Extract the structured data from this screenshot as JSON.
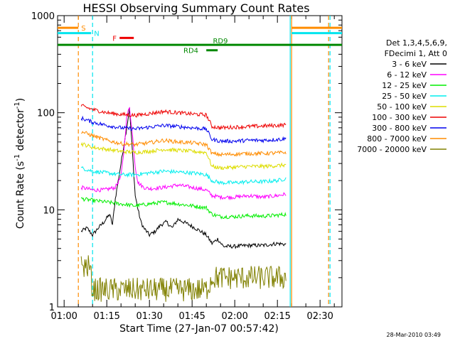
{
  "chart_data": {
    "type": "line",
    "title": "HESSI Observing Summary Count Rates",
    "xlabel": "Start Time (27-Jan-07 00:57:42)",
    "ylabel_main": "Count Rate (s",
    "ylabel_sup1": "-1",
    "ylabel_mid": " detector",
    "ylabel_sup2": "-1",
    "ylabel_end": ")",
    "y_scale": "log",
    "xlim": [
      "00:57:42",
      "02:37:42"
    ],
    "ylim": [
      1,
      1000
    ],
    "x_ticks": [
      "01:00",
      "01:15",
      "01:30",
      "01:45",
      "02:00",
      "02:15",
      "02:30"
    ],
    "y_ticks": [
      "1",
      "10",
      "100",
      "1000"
    ],
    "timestamp": "28-Mar-2010 03:49",
    "legend_placement": "right",
    "legend_header": [
      "Det 1,3,4,5,6,9,",
      "FDecimi 1, Att 0"
    ],
    "colors": {
      "eclipse": "#ff8c00",
      "saa": "#00e5ee",
      "flare": "#ee0000",
      "decimation": "#008800"
    },
    "markers": [
      {
        "label": "S",
        "color": "#ff8c00",
        "start": "00:57:42",
        "end": "01:05:00",
        "level": 750
      },
      {
        "label": "N",
        "color": "#00e5ee",
        "start": "00:57:42",
        "end": "01:09:30",
        "level": 660
      },
      {
        "label": "F",
        "color": "#ee0000",
        "start": "01:19:30",
        "end": "01:24:30",
        "level": 590
      },
      {
        "label": "RD9",
        "color": "#008800",
        "start": "00:57:42",
        "end": "02:37:42",
        "level": 500
      },
      {
        "label": "RD4",
        "color": "#008800",
        "start": "01:50:00",
        "end": "01:54:00",
        "level": 440
      }
    ],
    "marker_labels_right": [
      {
        "color": "#ff8c00",
        "start": "02:20:00",
        "end": "02:37:42",
        "level": 750
      },
      {
        "color": "#00e5ee",
        "start": "02:20:00",
        "end": "02:37:42",
        "level": 660
      }
    ],
    "vlines": [
      {
        "time": "01:05:00",
        "color": "#ff8c00",
        "style": "dashed"
      },
      {
        "time": "01:10:00",
        "color": "#00e5ee",
        "style": "dashed"
      },
      {
        "time": "02:19:30",
        "color": "#00e5ee",
        "style": "solid"
      },
      {
        "time": "02:20:00",
        "color": "#ff8c00",
        "style": "solid"
      },
      {
        "time": "02:33:00",
        "color": "#ff8c00",
        "style": "dashed"
      },
      {
        "time": "02:33:30",
        "color": "#00e5ee",
        "style": "dashed"
      }
    ],
    "data_start": "01:06:00",
    "data_end": "02:18:00",
    "series": [
      {
        "name": "3 - 6 keV",
        "color": "#000000",
        "points": [
          [
            "01:06",
            6
          ],
          [
            "01:08",
            6.5
          ],
          [
            "01:10",
            5.5
          ],
          [
            "01:12",
            6.5
          ],
          [
            "01:14",
            7.5
          ],
          [
            "01:16",
            9
          ],
          [
            "01:17",
            7
          ],
          [
            "01:18",
            13
          ],
          [
            "01:20",
            30
          ],
          [
            "01:22",
            70
          ],
          [
            "01:23",
            110
          ],
          [
            "01:24",
            40
          ],
          [
            "01:25",
            14
          ],
          [
            "01:26",
            10
          ],
          [
            "01:27",
            7.5
          ],
          [
            "01:28",
            6.5
          ],
          [
            "01:30",
            5.5
          ],
          [
            "01:32",
            6
          ],
          [
            "01:34",
            7
          ],
          [
            "01:36",
            7.5
          ],
          [
            "01:38",
            6.5
          ],
          [
            "01:40",
            8
          ],
          [
            "01:42",
            7.5
          ],
          [
            "01:44",
            7
          ],
          [
            "01:46",
            6.5
          ],
          [
            "01:48",
            6
          ],
          [
            "01:50",
            5.5
          ],
          [
            "01:52",
            4.5
          ],
          [
            "01:54",
            5
          ],
          [
            "01:56",
            4.2
          ],
          [
            "02:00",
            4.2
          ],
          [
            "02:05",
            4.3
          ],
          [
            "02:10",
            4.3
          ],
          [
            "02:15",
            4.5
          ],
          [
            "02:18",
            4.4
          ]
        ]
      },
      {
        "name": "6 - 12 keV",
        "color": "#ff00ff",
        "points": [
          [
            "01:06",
            17
          ],
          [
            "01:10",
            16
          ],
          [
            "01:14",
            16
          ],
          [
            "01:18",
            17
          ],
          [
            "01:20",
            22
          ],
          [
            "01:21",
            40
          ],
          [
            "01:22",
            90
          ],
          [
            "01:23",
            115
          ],
          [
            "01:24",
            60
          ],
          [
            "01:25",
            28
          ],
          [
            "01:26",
            19
          ],
          [
            "01:28",
            17
          ],
          [
            "01:30",
            16.5
          ],
          [
            "01:35",
            17
          ],
          [
            "01:40",
            18
          ],
          [
            "01:45",
            17
          ],
          [
            "01:50",
            16
          ],
          [
            "01:52",
            14
          ],
          [
            "01:55",
            13.5
          ],
          [
            "02:00",
            13.5
          ],
          [
            "02:05",
            14
          ],
          [
            "02:10",
            13.5
          ],
          [
            "02:15",
            14
          ],
          [
            "02:18",
            14.5
          ]
        ]
      },
      {
        "name": "12 - 25 keV",
        "color": "#00ee00",
        "points": [
          [
            "01:06",
            13
          ],
          [
            "01:10",
            12.5
          ],
          [
            "01:15",
            12
          ],
          [
            "01:20",
            11.5
          ],
          [
            "01:25",
            11
          ],
          [
            "01:30",
            11.5
          ],
          [
            "01:35",
            12
          ],
          [
            "01:40",
            11.5
          ],
          [
            "01:45",
            11
          ],
          [
            "01:50",
            10.5
          ],
          [
            "01:52",
            9
          ],
          [
            "01:55",
            8.5
          ],
          [
            "02:00",
            8.5
          ],
          [
            "02:05",
            8.7
          ],
          [
            "02:10",
            8.6
          ],
          [
            "02:15",
            8.8
          ],
          [
            "02:18",
            9
          ]
        ]
      },
      {
        "name": "25 - 50 keV",
        "color": "#00eeee",
        "points": [
          [
            "01:06",
            27
          ],
          [
            "01:10",
            25
          ],
          [
            "01:15",
            24
          ],
          [
            "01:20",
            23
          ],
          [
            "01:25",
            23
          ],
          [
            "01:30",
            24
          ],
          [
            "01:35",
            25
          ],
          [
            "01:40",
            24.5
          ],
          [
            "01:45",
            24
          ],
          [
            "01:50",
            23
          ],
          [
            "01:52",
            20
          ],
          [
            "01:55",
            19
          ],
          [
            "02:00",
            19
          ],
          [
            "02:05",
            19.5
          ],
          [
            "02:10",
            19.5
          ],
          [
            "02:15",
            20
          ],
          [
            "02:18",
            21
          ]
        ]
      },
      {
        "name": "50 - 100 keV",
        "color": "#dddd00",
        "points": [
          [
            "01:06",
            48
          ],
          [
            "01:10",
            44
          ],
          [
            "01:15",
            42
          ],
          [
            "01:20",
            40
          ],
          [
            "01:25",
            39
          ],
          [
            "01:30",
            40
          ],
          [
            "01:35",
            42
          ],
          [
            "01:40",
            41
          ],
          [
            "01:45",
            40
          ],
          [
            "01:50",
            39
          ],
          [
            "01:52",
            28
          ],
          [
            "01:55",
            27
          ],
          [
            "02:00",
            27.5
          ],
          [
            "02:05",
            28
          ],
          [
            "02:10",
            28
          ],
          [
            "02:15",
            28.5
          ],
          [
            "02:18",
            29
          ]
        ]
      },
      {
        "name": "100 - 300 keV",
        "color": "#ee0000",
        "points": [
          [
            "01:06",
            118
          ],
          [
            "01:10",
            108
          ],
          [
            "01:15",
            100
          ],
          [
            "01:20",
            96
          ],
          [
            "01:25",
            94
          ],
          [
            "01:30",
            98
          ],
          [
            "01:35",
            103
          ],
          [
            "01:40",
            100
          ],
          [
            "01:45",
            97
          ],
          [
            "01:50",
            95
          ],
          [
            "01:52",
            72
          ],
          [
            "01:55",
            70
          ],
          [
            "02:00",
            71
          ],
          [
            "02:05",
            72
          ],
          [
            "02:10",
            73
          ],
          [
            "02:15",
            74
          ],
          [
            "02:18",
            75
          ]
        ]
      },
      {
        "name": "300 - 800 keV",
        "color": "#0000ee",
        "points": [
          [
            "01:06",
            88
          ],
          [
            "01:10",
            80
          ],
          [
            "01:15",
            74
          ],
          [
            "01:20",
            70
          ],
          [
            "01:25",
            68
          ],
          [
            "01:30",
            71
          ],
          [
            "01:35",
            74
          ],
          [
            "01:40",
            72
          ],
          [
            "01:45",
            70
          ],
          [
            "01:50",
            68
          ],
          [
            "01:52",
            53
          ],
          [
            "01:55",
            51
          ],
          [
            "02:00",
            51
          ],
          [
            "02:05",
            52
          ],
          [
            "02:10",
            52
          ],
          [
            "02:15",
            53
          ],
          [
            "02:18",
            54
          ]
        ]
      },
      {
        "name": "800 - 7000 keV",
        "color": "#ff8c00",
        "points": [
          [
            "01:06",
            64
          ],
          [
            "01:10",
            58
          ],
          [
            "01:15",
            52
          ],
          [
            "01:20",
            48
          ],
          [
            "01:25",
            47
          ],
          [
            "01:30",
            49
          ],
          [
            "01:35",
            52
          ],
          [
            "01:40",
            50
          ],
          [
            "01:45",
            49
          ],
          [
            "01:50",
            47
          ],
          [
            "01:52",
            38
          ],
          [
            "01:55",
            37
          ],
          [
            "02:00",
            37.5
          ],
          [
            "02:05",
            38
          ],
          [
            "02:10",
            38
          ],
          [
            "02:15",
            38.5
          ],
          [
            "02:18",
            39
          ]
        ]
      },
      {
        "name": "7000 - 20000 keV",
        "color": "#808000",
        "points": [
          [
            "01:06",
            2.6
          ],
          [
            "01:09",
            2.6
          ],
          [
            "01:10",
            1.5
          ],
          [
            "01:20",
            1.5
          ],
          [
            "01:30",
            1.5
          ],
          [
            "01:40",
            1.5
          ],
          [
            "01:50",
            1.5
          ],
          [
            "01:52",
            2.0
          ],
          [
            "02:00",
            2.0
          ],
          [
            "02:10",
            2.0
          ],
          [
            "02:18",
            2.0
          ]
        ]
      }
    ]
  }
}
